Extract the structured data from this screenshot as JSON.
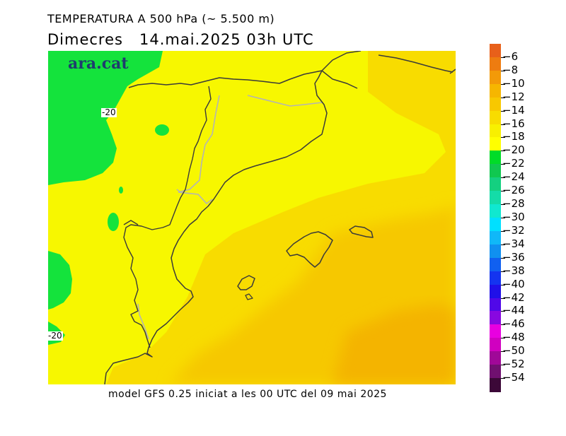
{
  "title": "TEMPERATURA A 500 hPa (~ 5.500 m)",
  "date_line": "Dimecres   14.mai.2025 03h UTC",
  "footer": "model GFS 0.25 iniciat a les 00 UTC del 09 mai 2025",
  "watermark": "ara.cat",
  "contour_labels": [
    "-20",
    "-20"
  ],
  "legend": {
    "labels": [
      "-6",
      "-8",
      "-10",
      "-12",
      "-14",
      "-16",
      "-18",
      "-20",
      "-22",
      "-24",
      "-26",
      "-28",
      "-30",
      "-32",
      "-34",
      "-36",
      "-38",
      "-40",
      "-42",
      "-44",
      "-46",
      "-48",
      "-50",
      "-52",
      "-54"
    ],
    "colors": [
      "#e8601a",
      "#ee7c10",
      "#f39a08",
      "#f6b600",
      "#f8c800",
      "#f8dc00",
      "#f8f000",
      "#ffff00",
      "#00dc28",
      "#10c850",
      "#14d080",
      "#14dca8",
      "#10e8d0",
      "#00e0ff",
      "#10b8f8",
      "#1090f0",
      "#1060f0",
      "#1434f0",
      "#2010e8",
      "#5008e8",
      "#8808e0",
      "#e800e0",
      "#d000c0",
      "#a00898",
      "#701070",
      "#3c0838"
    ]
  },
  "colors": {
    "yellow": "#f7f700",
    "green": "#14e33c",
    "orange_light": "#f8dc00",
    "orange": "#f6c800",
    "orange_dark": "#f4b400",
    "coast": "#3a3a3a",
    "border": "#b4b4b4"
  }
}
